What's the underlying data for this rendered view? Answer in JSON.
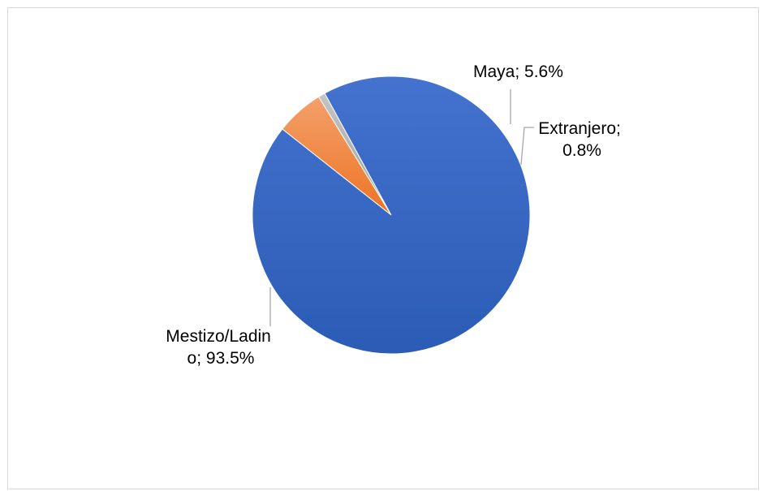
{
  "chart_data": {
    "type": "pie",
    "slices": [
      {
        "label_lines": [
          "Maya; 5.6%"
        ],
        "name": "Maya",
        "value": 5.6,
        "color": "#ed7d31"
      },
      {
        "label_lines": [
          "Extranjero;",
          "0.8%"
        ],
        "name": "Extranjero",
        "value": 0.8,
        "color": "#a5a5a5"
      },
      {
        "label_lines": [
          "Mestizo/Ladin",
          "o; 93.5%"
        ],
        "name": "Mestizo/Ladino",
        "value": 93.5,
        "color": "#2f62ba"
      }
    ]
  }
}
